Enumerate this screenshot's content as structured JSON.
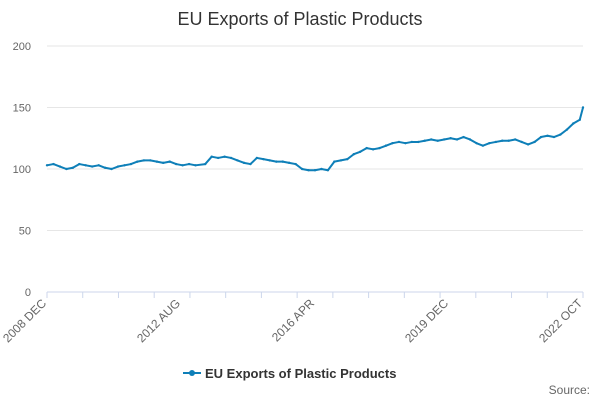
{
  "chart_data": {
    "type": "line",
    "title": "EU Exports of Plastic Products",
    "xlabel": "",
    "ylabel": "",
    "ylim": [
      0,
      200
    ],
    "y_ticks": [
      0,
      50,
      100,
      150,
      200
    ],
    "x_tick_labels": [
      "2008 DEC",
      "2012 AUG",
      "2016 APR",
      "2019 DEC",
      "2022 OCT"
    ],
    "x_range": [
      "2008-12",
      "2022-10"
    ],
    "grid": true,
    "legend_position": "bottom",
    "series": [
      {
        "name": "EU Exports of Plastic Products",
        "color": "#0e7fb8",
        "points": [
          [
            "2008-12",
            103
          ],
          [
            "2009-02",
            104
          ],
          [
            "2009-04",
            102
          ],
          [
            "2009-06",
            100
          ],
          [
            "2009-08",
            101
          ],
          [
            "2009-10",
            104
          ],
          [
            "2009-12",
            103
          ],
          [
            "2010-02",
            102
          ],
          [
            "2010-04",
            103
          ],
          [
            "2010-06",
            101
          ],
          [
            "2010-08",
            100
          ],
          [
            "2010-10",
            102
          ],
          [
            "2010-12",
            103
          ],
          [
            "2011-02",
            104
          ],
          [
            "2011-04",
            106
          ],
          [
            "2011-06",
            107
          ],
          [
            "2011-08",
            107
          ],
          [
            "2011-10",
            106
          ],
          [
            "2011-12",
            105
          ],
          [
            "2012-02",
            106
          ],
          [
            "2012-04",
            104
          ],
          [
            "2012-06",
            103
          ],
          [
            "2012-08",
            104
          ],
          [
            "2012-10",
            103
          ],
          [
            "2013-01",
            104
          ],
          [
            "2013-03",
            110
          ],
          [
            "2013-05",
            109
          ],
          [
            "2013-07",
            110
          ],
          [
            "2013-09",
            109
          ],
          [
            "2013-11",
            107
          ],
          [
            "2014-01",
            105
          ],
          [
            "2014-03",
            104
          ],
          [
            "2014-05",
            109
          ],
          [
            "2014-07",
            108
          ],
          [
            "2014-09",
            107
          ],
          [
            "2014-11",
            106
          ],
          [
            "2015-01",
            106
          ],
          [
            "2015-03",
            105
          ],
          [
            "2015-05",
            104
          ],
          [
            "2015-07",
            100
          ],
          [
            "2015-09",
            99
          ],
          [
            "2015-11",
            99
          ],
          [
            "2016-01",
            100
          ],
          [
            "2016-03",
            99
          ],
          [
            "2016-05",
            106
          ],
          [
            "2016-07",
            107
          ],
          [
            "2016-09",
            108
          ],
          [
            "2016-11",
            112
          ],
          [
            "2017-01",
            114
          ],
          [
            "2017-03",
            117
          ],
          [
            "2017-05",
            116
          ],
          [
            "2017-07",
            117
          ],
          [
            "2017-09",
            119
          ],
          [
            "2017-11",
            121
          ],
          [
            "2018-01",
            122
          ],
          [
            "2018-03",
            121
          ],
          [
            "2018-05",
            122
          ],
          [
            "2018-07",
            122
          ],
          [
            "2018-09",
            123
          ],
          [
            "2018-11",
            124
          ],
          [
            "2019-01",
            123
          ],
          [
            "2019-03",
            124
          ],
          [
            "2019-05",
            125
          ],
          [
            "2019-07",
            124
          ],
          [
            "2019-09",
            126
          ],
          [
            "2019-11",
            124
          ],
          [
            "2020-01",
            121
          ],
          [
            "2020-03",
            119
          ],
          [
            "2020-05",
            121
          ],
          [
            "2020-07",
            122
          ],
          [
            "2020-09",
            123
          ],
          [
            "2020-11",
            123
          ],
          [
            "2021-01",
            124
          ],
          [
            "2021-03",
            122
          ],
          [
            "2021-05",
            120
          ],
          [
            "2021-07",
            122
          ],
          [
            "2021-09",
            126
          ],
          [
            "2021-11",
            127
          ],
          [
            "2022-01",
            126
          ],
          [
            "2022-03",
            128
          ],
          [
            "2022-05",
            132
          ],
          [
            "2022-07",
            137
          ],
          [
            "2022-09",
            140
          ],
          [
            "2022-10",
            150
          ]
        ]
      }
    ]
  },
  "source_label": "Source:"
}
